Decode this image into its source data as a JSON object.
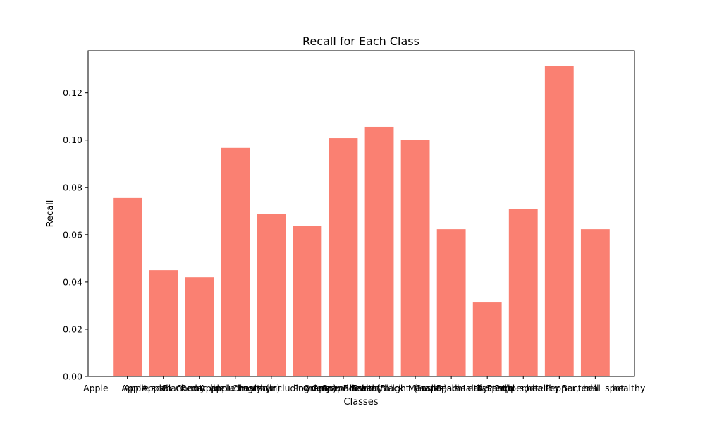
{
  "chart_data": {
    "type": "bar",
    "title": "Recall for Each Class",
    "xlabel": "Classes",
    "ylabel": "Recall",
    "categories": [
      "Apple___Apple_scab",
      "Apple___Black_rot",
      "Apple___Cedar_apple_rust",
      "Apple___healthy",
      "Cherry_(including_sour)___Powdery_mildew",
      "Cherry_(including_sour)___healthy",
      "Grape___Black_rot",
      "Grape___Esca_(Black_Measles)",
      "Grape___Leaf_blight_(Isariopsis_Leaf_Spot)",
      "Grape___healthy",
      "Peach___Bacterial_spot",
      "Peach___healthy",
      "Pepper,_bell___Bacterial_spot",
      "Pepper,_bell___healthy"
    ],
    "values": [
      0.0755,
      0.045,
      0.042,
      0.0967,
      0.0686,
      0.0638,
      0.1008,
      0.1056,
      0.1,
      0.0623,
      0.0313,
      0.0707,
      0.1313,
      0.0623
    ],
    "ylim": [
      0,
      0.1378
    ],
    "yticks": [
      0.0,
      0.02,
      0.04,
      0.06,
      0.08,
      0.1,
      0.12
    ],
    "ytick_labels": [
      "0.00",
      "0.02",
      "0.04",
      "0.06",
      "0.08",
      "0.10",
      "0.12"
    ],
    "bar_color": "#fa8072",
    "grid": false,
    "legend": "none"
  }
}
